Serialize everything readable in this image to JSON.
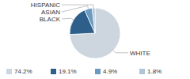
{
  "chart_data": {
    "type": "pie",
    "categories": [
      "WHITE",
      "BLACK",
      "ASIAN",
      "HISPANIC"
    ],
    "values": [
      74.2,
      19.1,
      4.9,
      1.8
    ],
    "value_labels": [
      "74.2%",
      "19.1%",
      "4.9%",
      "1.8%"
    ],
    "colors": [
      "#cdd5de",
      "#2e5f8a",
      "#6a9abf",
      "#b0c4d8"
    ],
    "legend": "bottom"
  }
}
